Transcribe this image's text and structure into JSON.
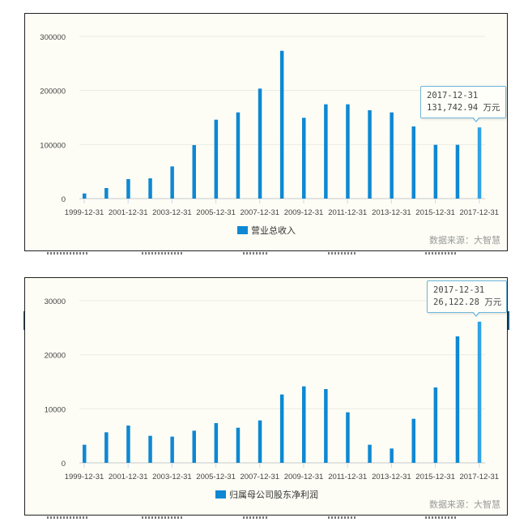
{
  "chart_data": [
    {
      "type": "bar",
      "title": "",
      "xlabel": "",
      "ylabel": "",
      "ylim": [
        0,
        300000
      ],
      "yticks": [
        "0",
        "100000",
        "200000",
        "300000"
      ],
      "ytick_values": [
        0,
        100000,
        200000,
        300000
      ],
      "grid": true,
      "categories": [
        "1999-12-31",
        "2000-12-31",
        "2001-12-31",
        "2002-12-31",
        "2003-12-31",
        "2004-12-31",
        "2005-12-31",
        "2006-12-31",
        "2007-12-31",
        "2008-12-31",
        "2009-12-31",
        "2010-12-31",
        "2011-12-31",
        "2012-12-31",
        "2013-12-31",
        "2014-12-31",
        "2015-12-31",
        "2016-12-31",
        "2017-12-31"
      ],
      "xtick_labels": [
        "1999-12-31",
        "2001-12-31",
        "2003-12-31",
        "2005-12-31",
        "2007-12-31",
        "2009-12-31",
        "2011-12-31",
        "2013-12-31",
        "2015-12-31",
        "2017-12-31"
      ],
      "series": [
        {
          "name": "营业总收入",
          "color": "#0e88d3",
          "values": [
            9500,
            19500,
            36000,
            37500,
            59500,
            99000,
            146000,
            159500,
            203500,
            273500,
            149500,
            174500,
            174500,
            163500,
            159500,
            133500,
            99500,
            99500,
            131742.94
          ]
        }
      ],
      "legend": {
        "label": "营业总收入",
        "position": "bottom-center"
      },
      "tooltip": {
        "date": "2017-12-31",
        "value": "131,742.94 万元",
        "index": 18
      },
      "source": "数据来源：大智慧"
    },
    {
      "type": "bar",
      "title": "",
      "xlabel": "",
      "ylabel": "",
      "ylim": [
        0,
        30000
      ],
      "yticks": [
        "0",
        "10000",
        "20000",
        "30000"
      ],
      "ytick_values": [
        0,
        10000,
        20000,
        30000
      ],
      "grid": true,
      "categories": [
        "1999-12-31",
        "2000-12-31",
        "2001-12-31",
        "2002-12-31",
        "2003-12-31",
        "2004-12-31",
        "2005-12-31",
        "2006-12-31",
        "2007-12-31",
        "2008-12-31",
        "2009-12-31",
        "2010-12-31",
        "2011-12-31",
        "2012-12-31",
        "2013-12-31",
        "2014-12-31",
        "2015-12-31",
        "2016-12-31",
        "2017-12-31"
      ],
      "xtick_labels": [
        "1999-12-31",
        "2001-12-31",
        "2003-12-31",
        "2005-12-31",
        "2007-12-31",
        "2009-12-31",
        "2011-12-31",
        "2013-12-31",
        "2015-12-31",
        "2017-12-31"
      ],
      "series": [
        {
          "name": "归属母公司股东净利润",
          "color": "#0e88d3",
          "values": [
            3350,
            5650,
            6900,
            5000,
            4850,
            5950,
            7350,
            6500,
            7850,
            12650,
            14150,
            13650,
            9350,
            3350,
            2650,
            8150,
            13950,
            23400,
            26122.28
          ]
        }
      ],
      "legend": {
        "label": "归属母公司股东净利润",
        "position": "bottom-center"
      },
      "tooltip": {
        "date": "2017-12-31",
        "value": "26,122.28 万元",
        "index": 18
      },
      "source": "数据来源：大智慧"
    }
  ]
}
